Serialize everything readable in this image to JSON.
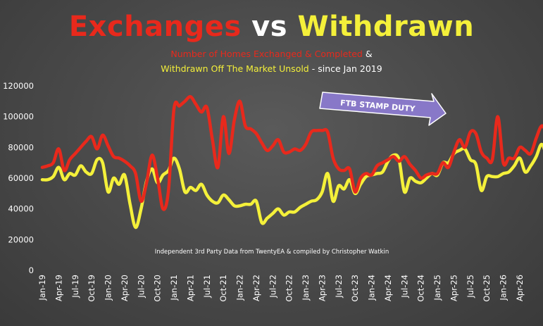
{
  "chart_data": {
    "type": "line",
    "title": {
      "part1": "Exchanges",
      "part2": "vs",
      "part3": "Withdrawn"
    },
    "subtitle": {
      "line1_colored": "Number of Homes Exchanged & Completed",
      "line1_plain": " &",
      "line2_colored": "Withdrawn Off The Market Unsold",
      "line2_plain": " - since Jan 2019"
    },
    "xlabel": "",
    "ylabel": "",
    "ylim": [
      0,
      120000
    ],
    "y_ticks": [
      "0",
      "20000",
      "40000",
      "60000",
      "80000",
      "100000",
      "120000"
    ],
    "x_tick_labels": [
      "Jan-19",
      "Apr-19",
      "Jul-19",
      "Oct-19",
      "Jan-20",
      "Apr-20",
      "Jul-20",
      "Oct-20",
      "Jan-21",
      "Apr-21",
      "Jul-21",
      "Oct-21",
      "Jan-22",
      "Apr-22",
      "Jul-22",
      "Oct-22",
      "Jan-23",
      "Apr-23",
      "Jul-23",
      "Oct-23",
      "Jan-24",
      "Apr-24",
      "Jul-24",
      "Oct-24",
      "Jan-25",
      "Apr-25",
      "Jul-25",
      "Oct-25",
      "Jan-26",
      "Apr-26"
    ],
    "grid": false,
    "legend": "none",
    "annotations": {
      "arrow_label": "FTB STAMP DUTY",
      "source_note": "Independent 3rd Party Data from TwentyEA  & compiled by Christopher Watkin"
    },
    "colors": {
      "exchanges": "#e8291c",
      "withdrawn": "#f4f03a",
      "arrow_fill": "#8878c8",
      "arrow_stroke": "#ffffff"
    },
    "series": [
      {
        "values": [
          67000,
          68000,
          70000,
          79000,
          65000,
          72000,
          76000,
          80000,
          84000,
          87000,
          79000,
          88000,
          81000,
          74000,
          73000,
          71000,
          68000,
          63000,
          45000,
          57000,
          75000,
          60000,
          40000,
          52000,
          105000,
          107000,
          110000,
          113000,
          108000,
          103000,
          106000,
          85000,
          67000,
          100000,
          76000,
          98000,
          110000,
          94000,
          92000,
          89000,
          83000,
          78000,
          81000,
          85000,
          77000,
          77000,
          79000,
          78000,
          82000,
          90000,
          91000,
          91000,
          90000,
          73000,
          66000,
          65000,
          66000,
          51000,
          60000,
          63000,
          62000,
          68000,
          70000,
          72000,
          74000,
          71000,
          74000,
          69000,
          65000,
          60000,
          62000,
          63000,
          63000,
          70000,
          67000,
          77000,
          85000,
          80000,
          90000,
          89000,
          77000,
          73000,
          72000,
          100000,
          70000,
          73000,
          73000,
          80000,
          78000,
          76000,
          86000,
          94000,
          89000,
          85000,
          68000,
          70000,
          75000
        ]
      },
      {
        "values": [
          59000,
          59000,
          61000,
          67000,
          59000,
          63000,
          62000,
          68000,
          64000,
          63000,
          72000,
          70000,
          51000,
          60000,
          56000,
          62000,
          43000,
          28000,
          40000,
          58000,
          66000,
          57000,
          62000,
          65000,
          73000,
          66000,
          51000,
          54000,
          52000,
          56000,
          49000,
          45000,
          44000,
          49000,
          46000,
          42000,
          42000,
          43000,
          43000,
          45000,
          31000,
          34000,
          37000,
          40000,
          36000,
          38000,
          38000,
          41000,
          43000,
          45000,
          46000,
          51000,
          63000,
          45000,
          55000,
          53000,
          59000,
          50000,
          56000,
          61000,
          62000,
          63000,
          64000,
          71000,
          75000,
          72000,
          51000,
          60000,
          58000,
          57000,
          60000,
          63000,
          62000,
          70000,
          70000,
          76000,
          78000,
          79000,
          72000,
          69000,
          52000,
          61000,
          61000,
          61000,
          63000,
          64000,
          68000,
          73000,
          64000,
          68000,
          74000,
          82000,
          72000,
          55000,
          58000,
          62000,
          67000
        ]
      }
    ]
  }
}
